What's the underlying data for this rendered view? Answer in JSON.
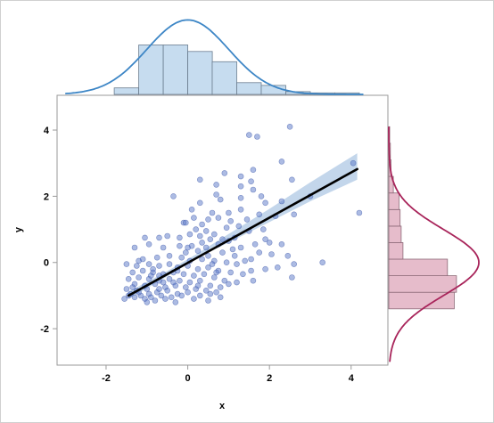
{
  "chart_data": {
    "type": "scatter",
    "title": "",
    "xlabel": "x",
    "ylabel": "y",
    "xlim": [
      -3.2,
      4.9
    ],
    "ylim": [
      -3.1,
      5.05
    ],
    "x_ticks": [
      -2,
      0,
      2,
      4
    ],
    "y_ticks": [
      -2,
      0,
      2,
      4
    ],
    "x_tick_labels": [
      "-2",
      "0",
      "2",
      "4"
    ],
    "y_tick_labels": [
      "-2",
      "0",
      "2",
      "4"
    ],
    "grid": false,
    "regression_line": {
      "x0": -1.45,
      "y0": -1.0,
      "x1": 4.15,
      "y1": 2.82
    },
    "confidence_band": [
      {
        "x": -1.45,
        "lo": -1.1,
        "hi": -0.88
      },
      {
        "x": -0.5,
        "lo": -0.42,
        "hi": -0.26
      },
      {
        "x": 0.2,
        "lo": 0.12,
        "hi": 0.24
      },
      {
        "x": 1.0,
        "lo": 0.6,
        "hi": 0.86
      },
      {
        "x": 2.0,
        "lo": 1.22,
        "hi": 1.62
      },
      {
        "x": 3.0,
        "lo": 1.85,
        "hi": 2.42
      },
      {
        "x": 4.15,
        "lo": 2.5,
        "hi": 3.3
      }
    ],
    "points": [
      [
        2.5,
        4.1
      ],
      [
        1.5,
        3.85
      ],
      [
        1.7,
        3.8
      ],
      [
        4.05,
        3.0
      ],
      [
        2.3,
        3.05
      ],
      [
        1.6,
        2.8
      ],
      [
        0.9,
        2.7
      ],
      [
        1.3,
        2.6
      ],
      [
        0.3,
        2.5
      ],
      [
        1.55,
        2.45
      ],
      [
        2.55,
        2.5
      ],
      [
        1.3,
        2.3
      ],
      [
        0.7,
        2.35
      ],
      [
        3.0,
        2.0
      ],
      [
        -0.35,
        2.0
      ],
      [
        0.7,
        2.05
      ],
      [
        1.6,
        2.2
      ],
      [
        1.3,
        1.95
      ],
      [
        1.8,
        2.0
      ],
      [
        0.3,
        1.8
      ],
      [
        0.8,
        1.9
      ],
      [
        2.3,
        1.85
      ],
      [
        1.9,
        1.8
      ],
      [
        0.1,
        1.6
      ],
      [
        0.6,
        1.5
      ],
      [
        1.0,
        1.5
      ],
      [
        1.3,
        1.6
      ],
      [
        2.6,
        1.45
      ],
      [
        0.15,
        1.35
      ],
      [
        0.5,
        1.3
      ],
      [
        0.75,
        1.35
      ],
      [
        1.05,
        1.25
      ],
      [
        1.75,
        1.45
      ],
      [
        2.15,
        1.4
      ],
      [
        4.2,
        1.5
      ],
      [
        -0.1,
        1.2
      ],
      [
        -0.05,
        1.2
      ],
      [
        0.35,
        1.15
      ],
      [
        0.95,
        1.05
      ],
      [
        1.25,
        1.1
      ],
      [
        1.45,
        1.3
      ],
      [
        0.2,
        1.0
      ],
      [
        0.45,
        0.95
      ],
      [
        0.65,
        0.85
      ],
      [
        1.15,
        0.75
      ],
      [
        1.5,
        0.95
      ],
      [
        1.85,
        1.0
      ],
      [
        -0.5,
        0.8
      ],
      [
        -0.7,
        0.75
      ],
      [
        0.05,
        0.85
      ],
      [
        0.3,
        0.8
      ],
      [
        0.55,
        0.7
      ],
      [
        0.75,
        0.55
      ],
      [
        1.0,
        0.65
      ],
      [
        1.3,
        0.45
      ],
      [
        2.0,
        0.6
      ],
      [
        2.3,
        0.55
      ],
      [
        -1.05,
        0.75
      ],
      [
        -1.3,
        0.45
      ],
      [
        -0.95,
        0.55
      ],
      [
        -0.6,
        0.45
      ],
      [
        -0.2,
        0.5
      ],
      [
        0.1,
        0.5
      ],
      [
        0.25,
        0.35
      ],
      [
        0.45,
        0.45
      ],
      [
        0.85,
        0.3
      ],
      [
        1.15,
        0.2
      ],
      [
        1.55,
        0.1
      ],
      [
        1.75,
        0.3
      ],
      [
        2.05,
        0.25
      ],
      [
        2.45,
        0.2
      ],
      [
        2.6,
        -0.05
      ],
      [
        3.3,
        0.0
      ],
      [
        -1.1,
        0.1
      ],
      [
        -0.75,
        0.15
      ],
      [
        -0.45,
        0.2
      ],
      [
        -0.15,
        0.15
      ],
      [
        0.05,
        0.05
      ],
      [
        0.35,
        0.1
      ],
      [
        0.65,
        0.05
      ],
      [
        0.95,
        0.0
      ],
      [
        1.2,
        -0.05
      ],
      [
        1.55,
        -0.25
      ],
      [
        1.9,
        -0.2
      ],
      [
        2.2,
        -0.15
      ],
      [
        2.55,
        -0.45
      ],
      [
        -1.5,
        -0.05
      ],
      [
        -1.25,
        -0.1
      ],
      [
        -0.95,
        -0.05
      ],
      [
        -0.7,
        -0.1
      ],
      [
        -0.45,
        -0.05
      ],
      [
        -0.25,
        -0.15
      ],
      [
        0.0,
        -0.1
      ],
      [
        0.25,
        -0.2
      ],
      [
        0.5,
        -0.15
      ],
      [
        0.75,
        -0.25
      ],
      [
        1.05,
        -0.3
      ],
      [
        1.35,
        -0.35
      ],
      [
        1.6,
        -0.55
      ],
      [
        -1.35,
        -0.3
      ],
      [
        -1.1,
        -0.25
      ],
      [
        -0.85,
        -0.3
      ],
      [
        -0.6,
        -0.35
      ],
      [
        -0.35,
        -0.3
      ],
      [
        -0.1,
        -0.35
      ],
      [
        0.15,
        -0.4
      ],
      [
        0.4,
        -0.35
      ],
      [
        0.65,
        -0.45
      ],
      [
        0.9,
        -0.55
      ],
      [
        1.2,
        -0.6
      ],
      [
        -1.45,
        -0.5
      ],
      [
        -1.2,
        -0.45
      ],
      [
        -0.95,
        -0.5
      ],
      [
        -0.7,
        -0.55
      ],
      [
        -0.45,
        -0.5
      ],
      [
        -0.2,
        -0.55
      ],
      [
        0.05,
        -0.6
      ],
      [
        0.3,
        -0.55
      ],
      [
        0.55,
        -0.7
      ],
      [
        0.8,
        -0.75
      ],
      [
        1.0,
        -0.65
      ],
      [
        -1.3,
        -0.65
      ],
      [
        -1.05,
        -0.7
      ],
      [
        -0.8,
        -0.65
      ],
      [
        -0.55,
        -0.75
      ],
      [
        -0.3,
        -0.7
      ],
      [
        -0.05,
        -0.75
      ],
      [
        0.2,
        -0.8
      ],
      [
        0.45,
        -0.85
      ],
      [
        0.7,
        -0.9
      ],
      [
        -1.5,
        -0.8
      ],
      [
        -1.25,
        -0.85
      ],
      [
        -1.0,
        -0.8
      ],
      [
        -0.75,
        -0.9
      ],
      [
        -0.5,
        -0.85
      ],
      [
        -0.25,
        -0.95
      ],
      [
        0.0,
        -0.9
      ],
      [
        0.3,
        -1.0
      ],
      [
        0.55,
        -0.95
      ],
      [
        -1.4,
        -0.95
      ],
      [
        -1.15,
        -1.0
      ],
      [
        -0.9,
        -1.05
      ],
      [
        -0.65,
        -1.0
      ],
      [
        -0.4,
        -1.05
      ],
      [
        -0.15,
        -1.0
      ],
      [
        0.15,
        -1.1
      ],
      [
        0.5,
        -1.15
      ],
      [
        0.8,
        -1.05
      ],
      [
        -1.55,
        -1.1
      ],
      [
        -1.3,
        -1.05
      ],
      [
        -1.05,
        -1.1
      ],
      [
        -0.8,
        -1.15
      ],
      [
        -0.55,
        -1.1
      ],
      [
        -0.3,
        -1.2
      ],
      [
        -1.0,
        -1.2
      ],
      [
        -1.45,
        -1.0
      ],
      [
        -1.2,
        -0.9
      ],
      [
        -0.95,
        -0.95
      ],
      [
        -0.7,
        -0.8
      ],
      [
        -0.6,
        -0.6
      ],
      [
        -0.35,
        -0.6
      ],
      [
        -0.85,
        -0.2
      ],
      [
        -1.2,
        0.05
      ],
      [
        -0.05,
        0.3
      ],
      [
        0.7,
        -0.3
      ],
      [
        1.4,
        0.05
      ],
      [
        0.5,
        0.2
      ],
      [
        1.1,
        0.4
      ],
      [
        -0.25,
        -0.25
      ],
      [
        0.25,
        -0.7
      ],
      [
        -0.7,
        -0.4
      ],
      [
        0.85,
        0.7
      ],
      [
        0.35,
        0.6
      ],
      [
        -1.35,
        -0.75
      ],
      [
        -0.2,
        0.75
      ],
      [
        0.0,
        0.45
      ],
      [
        1.65,
        0.55
      ],
      [
        -0.9,
        -0.4
      ],
      [
        0.6,
        -0.05
      ],
      [
        1.9,
        0.7
      ]
    ],
    "x_histogram": {
      "bins": [
        -1.8,
        -1.2,
        -0.6,
        0.0,
        0.6,
        1.2,
        1.8,
        2.4,
        3.0,
        3.6,
        4.2
      ],
      "density": [
        0.035,
        0.265,
        0.265,
        0.23,
        0.175,
        0.063,
        0.048,
        0.015,
        0.008,
        0.008
      ]
    },
    "y_histogram": {
      "bins": [
        -1.4,
        -0.9,
        -0.4,
        0.1,
        0.6,
        1.1,
        1.6,
        2.1,
        2.6,
        3.1,
        3.6,
        4.1
      ],
      "density": [
        0.29,
        0.3,
        0.26,
        0.063,
        0.055,
        0.05,
        0.045,
        0.02,
        0.01,
        0.007,
        0.004
      ]
    },
    "x_density_curve": {
      "mean": 0.0,
      "sd": 1.0
    },
    "y_density_curve": {
      "mean": 0.0,
      "sd": 1.0
    }
  },
  "colors": {
    "marker": "#5a78c8",
    "marker_edge": "#3b55a8",
    "regression": "#000000",
    "band": "#b9cfe8",
    "x_hist_fill": "#c6dcef",
    "x_hist_edge": "#6b7d8f",
    "x_curve": "#3d86c6",
    "y_hist_fill": "#e6bccb",
    "y_hist_edge": "#8d6a78",
    "y_curve": "#a8245a",
    "axis": "#9a9a9a",
    "frame": "#d0d0d0"
  }
}
